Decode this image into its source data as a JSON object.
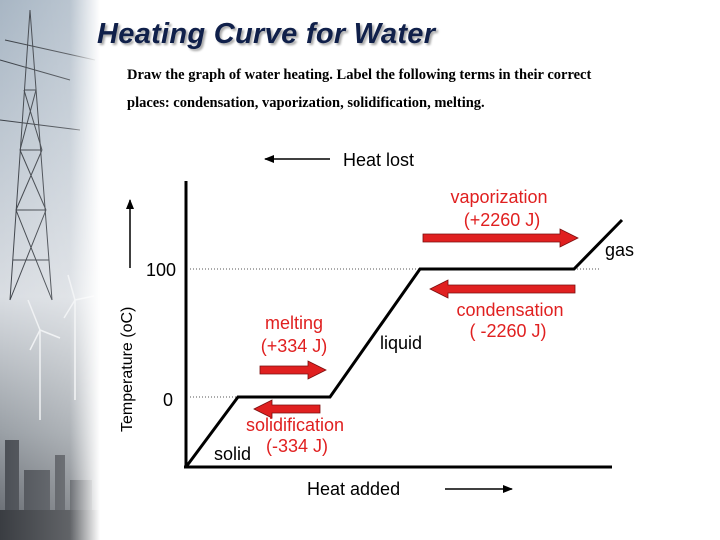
{
  "title": "Heating Curve for Water",
  "instructions": {
    "line1": "Draw the graph of water heating. Label the following terms in their correct",
    "line2": "places:  condensation, vaporization, solidification, melting."
  },
  "diagram": {
    "heat_lost_label": "Heat lost",
    "heat_added_label": "Heat added",
    "y_axis_label": "Temperature (oC)",
    "tick_100": "100",
    "tick_0": "0",
    "phases": {
      "solid": "solid",
      "liquid": "liquid",
      "gas": "gas"
    },
    "labels": {
      "vaporization": "vaporization",
      "vaporization_energy": "(+2260 J)",
      "melting": "melting",
      "melting_energy": "(+334 J)",
      "solidification": "solidification",
      "solidification_energy": "(-334 J)",
      "condensation": "condensation",
      "condensation_energy": "( -2260 J)"
    },
    "colors": {
      "arrow_red": "#e02020",
      "curve": "#000000",
      "title": "#10204a"
    }
  }
}
